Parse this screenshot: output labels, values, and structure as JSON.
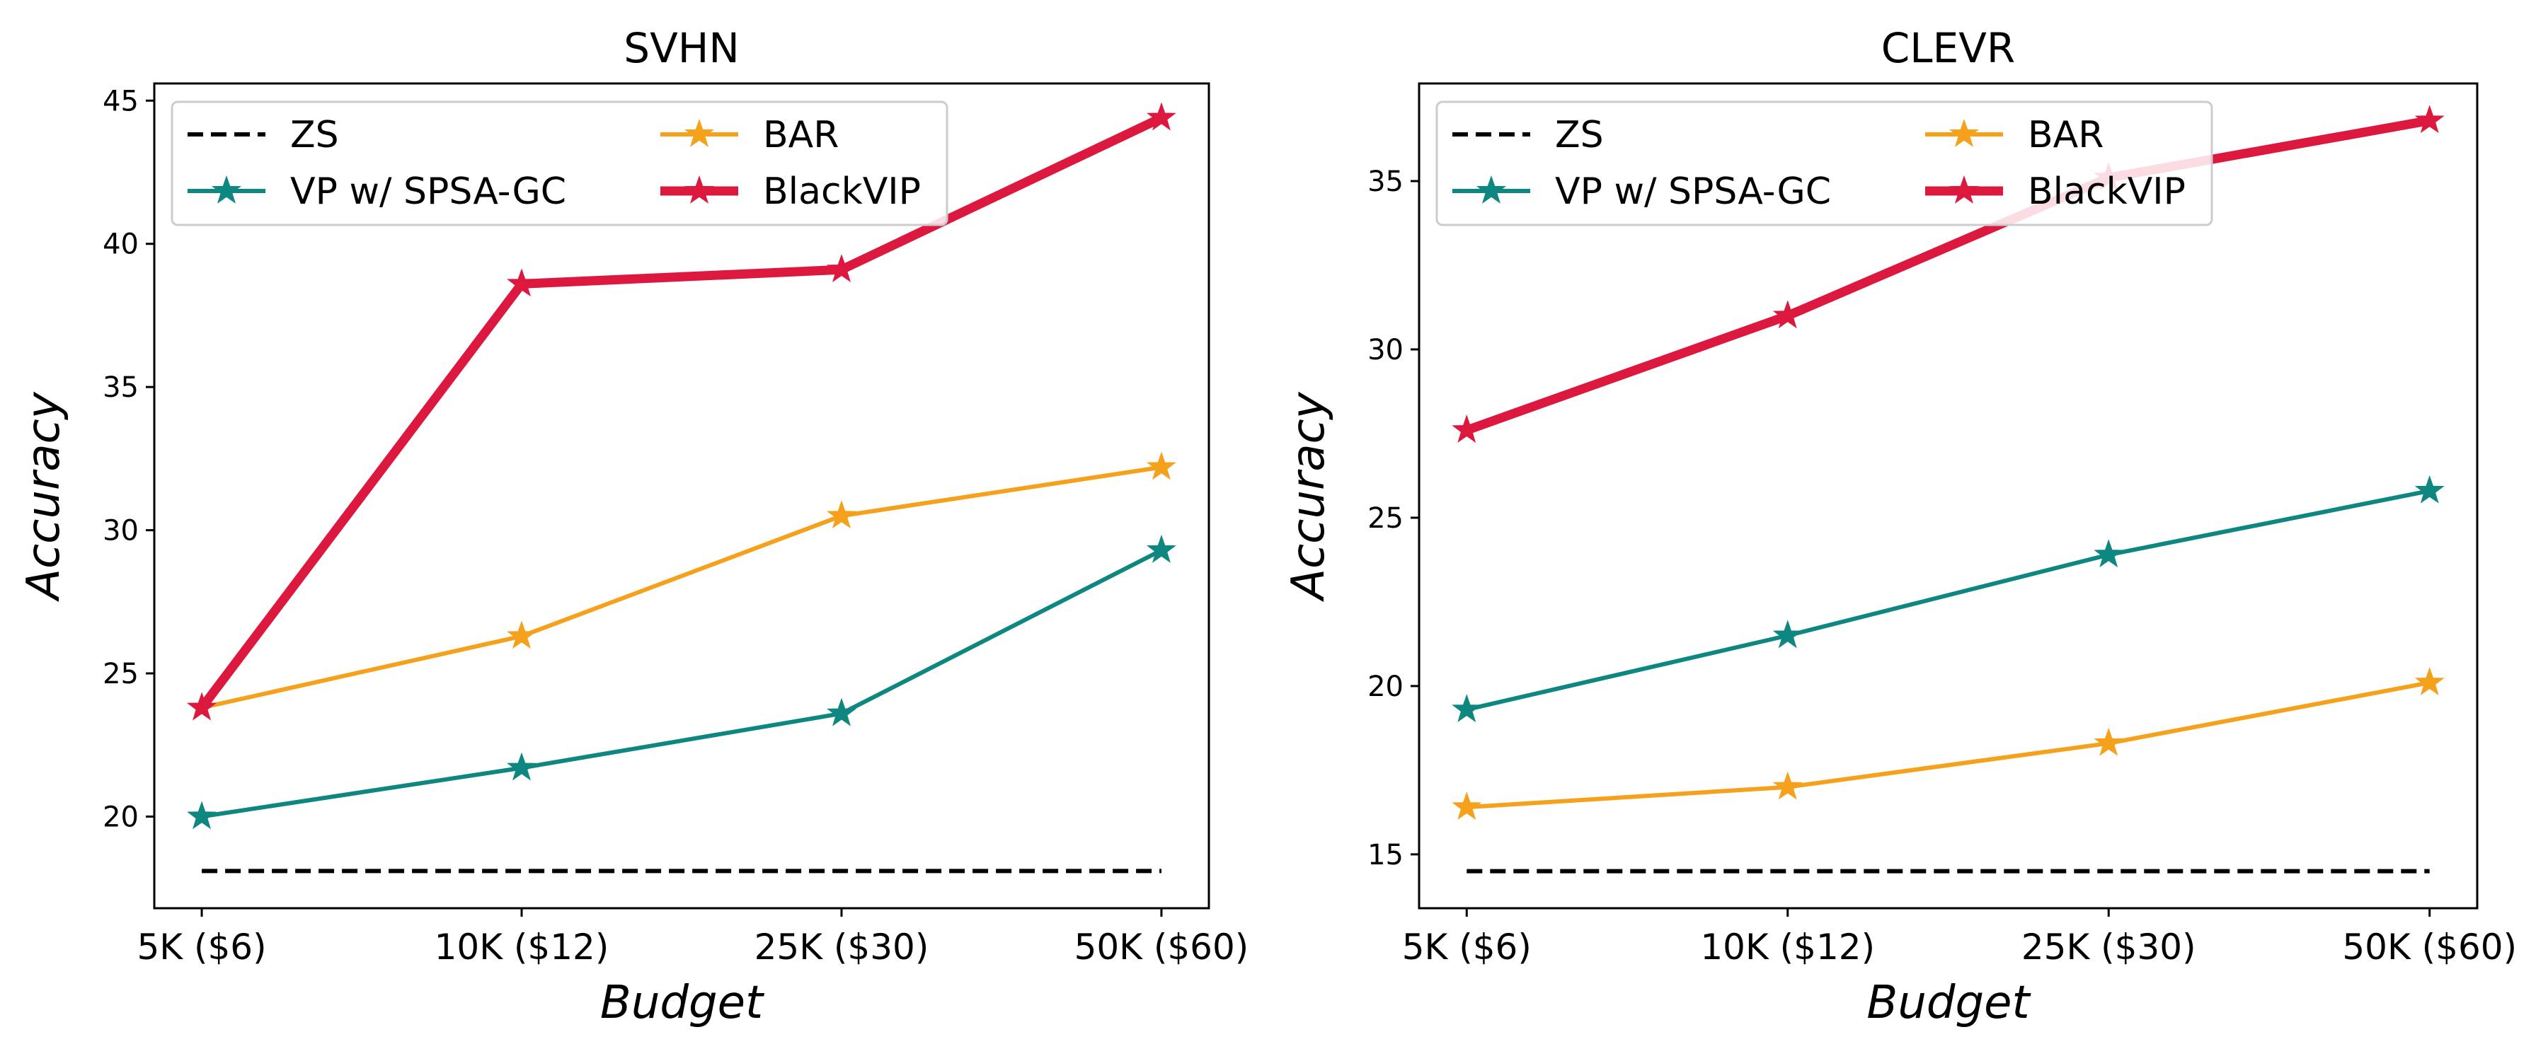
{
  "chart_data": [
    {
      "type": "line",
      "title": "SVHN",
      "xlabel": "Budget",
      "ylabel": "Accuracy",
      "categories": [
        "5K ($6)",
        "10K ($12)",
        "25K ($30)",
        "50K ($60)"
      ],
      "ylim": [
        16.8,
        45.6
      ],
      "yticks": [
        20,
        25,
        30,
        35,
        40,
        45
      ],
      "grid": false,
      "legend_position": "top-left",
      "series": [
        {
          "name": "ZS",
          "values": [
            18.1,
            18.1,
            18.1,
            18.1
          ],
          "color": "#000000",
          "style": "dashed",
          "marker": "none"
        },
        {
          "name": "VP w/ SPSA-GC",
          "values": [
            20.0,
            21.7,
            23.6,
            29.3
          ],
          "color": "#0f8781",
          "style": "solid",
          "marker": "star"
        },
        {
          "name": "BAR",
          "values": [
            23.8,
            26.3,
            30.5,
            32.2
          ],
          "color": "#f5a11c",
          "style": "solid",
          "marker": "star"
        },
        {
          "name": "BlackVIP",
          "values": [
            23.8,
            38.6,
            39.1,
            44.4
          ],
          "color": "#dc183f",
          "style": "solid",
          "marker": "star"
        }
      ]
    },
    {
      "type": "line",
      "title": "CLEVR",
      "xlabel": "Budget",
      "ylabel": "Accuracy",
      "categories": [
        "5K ($6)",
        "10K ($12)",
        "25K ($30)",
        "50K ($60)"
      ],
      "ylim": [
        13.4,
        37.9
      ],
      "yticks": [
        15,
        20,
        25,
        30,
        35
      ],
      "grid": false,
      "legend_position": "top-left",
      "series": [
        {
          "name": "ZS",
          "values": [
            14.5,
            14.5,
            14.5,
            14.5
          ],
          "color": "#000000",
          "style": "dashed",
          "marker": "none"
        },
        {
          "name": "VP w/ SPSA-GC",
          "values": [
            19.3,
            21.5,
            23.9,
            25.8
          ],
          "color": "#0f8781",
          "style": "solid",
          "marker": "star"
        },
        {
          "name": "BAR",
          "values": [
            16.4,
            17.0,
            18.3,
            20.1
          ],
          "color": "#f5a11c",
          "style": "solid",
          "marker": "star"
        },
        {
          "name": "BlackVIP",
          "values": [
            27.6,
            31.0,
            35.1,
            36.8
          ],
          "color": "#dc183f",
          "style": "solid",
          "marker": "star"
        }
      ]
    }
  ]
}
